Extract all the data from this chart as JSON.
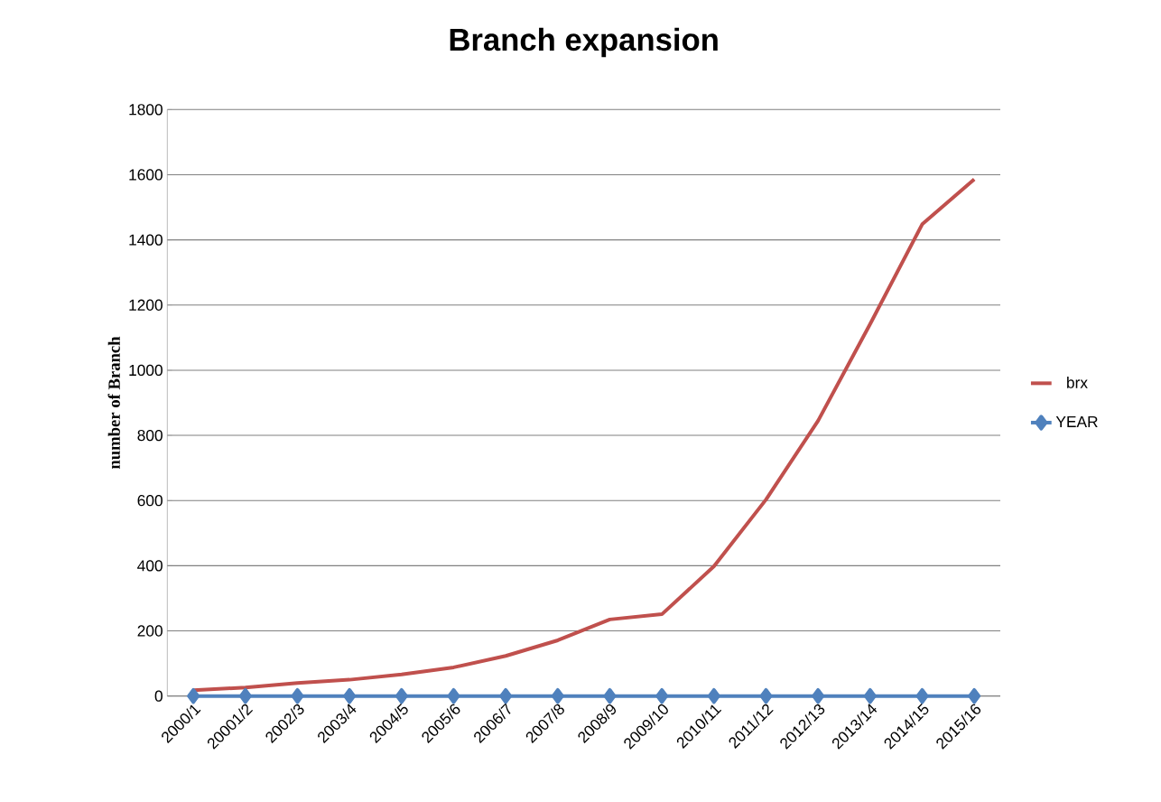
{
  "chart_data": {
    "type": "line",
    "title": "Branch expansion",
    "ylabel": "number of Branch",
    "categories": [
      "2000/1",
      "20001/2",
      "2002/3",
      "2003/4",
      "2004/5",
      "2005/6",
      "2006/7",
      "2007/8",
      "2008/9",
      "2009/10",
      "2010/11",
      "2011/12",
      "2012/13",
      "2013/14",
      "2014/15",
      "2015/16"
    ],
    "series": [
      {
        "name": "brx",
        "color": "#c0504d",
        "marker": "none",
        "values": [
          18,
          26,
          40,
          50,
          66,
          88,
          123,
          171,
          235,
          251,
          398,
          603,
          845,
          1142,
          1448,
          1586
        ]
      },
      {
        "name": "YEAR",
        "color": "#4f81bd",
        "marker": "diamond",
        "values": [
          0,
          0,
          0,
          0,
          0,
          0,
          0,
          0,
          0,
          0,
          0,
          0,
          0,
          0,
          0,
          0
        ]
      }
    ],
    "ylim": [
      0,
      1800
    ],
    "yticks": [
      0,
      200,
      400,
      600,
      800,
      1000,
      1200,
      1400,
      1600,
      1800
    ],
    "grid": "y",
    "legend": "right",
    "line_style": "solid"
  }
}
